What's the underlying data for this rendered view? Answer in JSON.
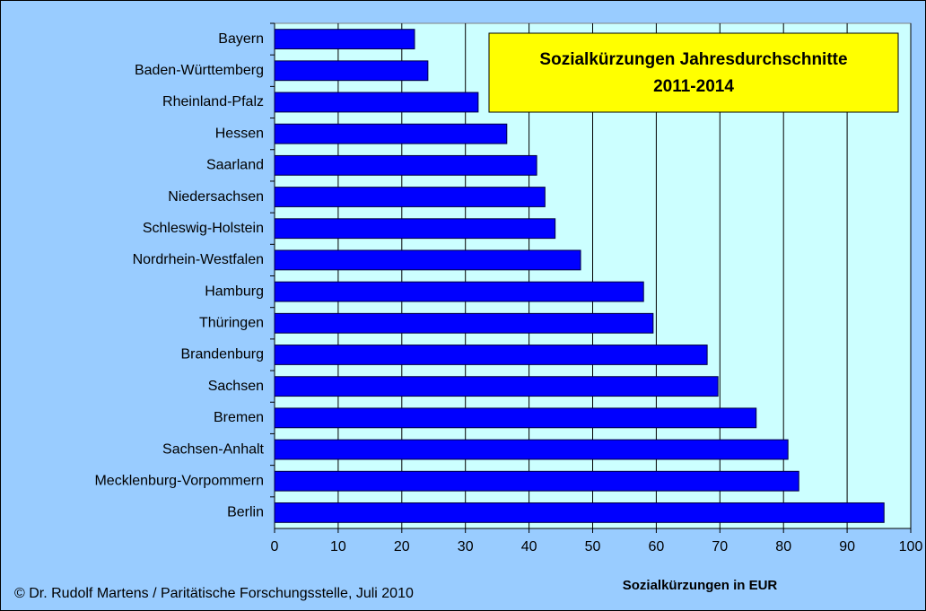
{
  "chart_data": {
    "type": "bar",
    "orientation": "horizontal",
    "title": [
      "Sozialkürzungen Jahresdurchschnitte",
      "2011-2014"
    ],
    "xlabel": "Sozialkürzungen in EUR",
    "footnote": "© Dr. Rudolf Martens / Paritätische Forschungsstelle, Juli 2010",
    "categories": [
      "Bayern",
      "Baden-Württemberg",
      "Rheinland-Pfalz",
      "Hessen",
      "Saarland",
      "Niedersachsen",
      "Schleswig-Holstein",
      "Nordrhein-Westfalen",
      "Hamburg",
      "Thüringen",
      "Brandenburg",
      "Sachsen",
      "Bremen",
      "Sachsen-Anhalt",
      "Mecklenburg-Vorpommern",
      "Berlin"
    ],
    "values": [
      22.0,
      24.1,
      32.0,
      36.5,
      41.2,
      42.5,
      44.1,
      48.1,
      58.0,
      59.5,
      68.0,
      69.7,
      75.7,
      80.7,
      82.4,
      95.8
    ],
    "color": "#0000ff",
    "xlim": [
      0,
      100
    ],
    "xticks": [
      0,
      10,
      20,
      30,
      40,
      50,
      60,
      70,
      80,
      90,
      100
    ],
    "grid": true
  }
}
